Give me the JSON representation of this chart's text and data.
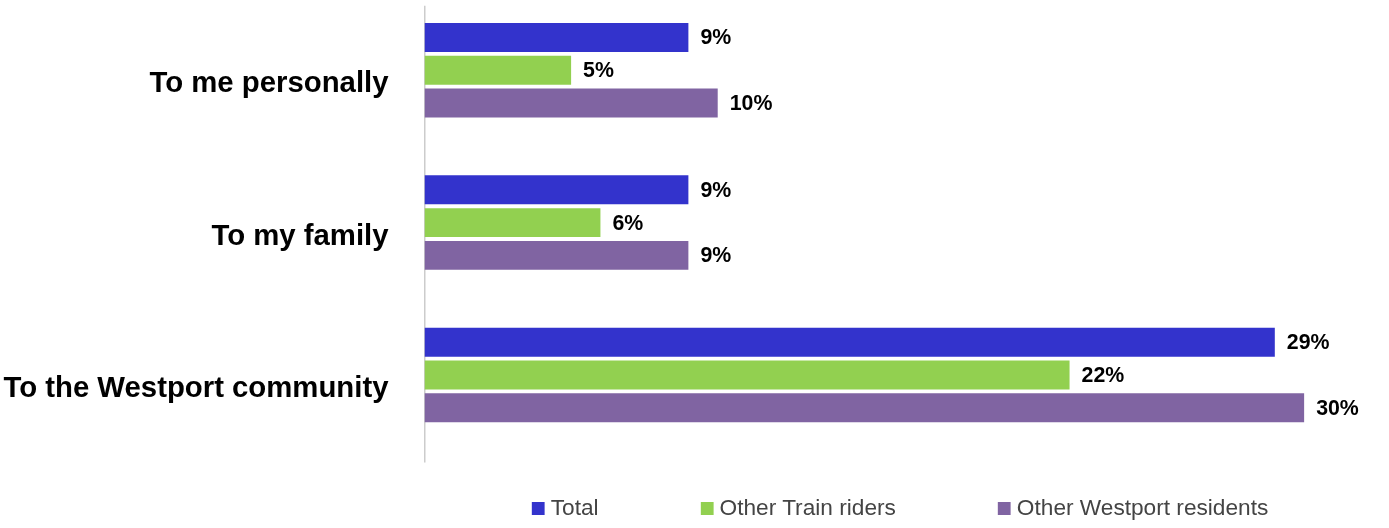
{
  "chart_data": {
    "type": "bar",
    "orientation": "horizontal",
    "categories": [
      "To me personally",
      "To my family",
      "To the Westport community"
    ],
    "series": [
      {
        "name": "Total",
        "color": "#3333cc",
        "values": [
          9,
          9,
          29
        ],
        "value_labels": [
          "9%",
          "9%",
          "29%"
        ]
      },
      {
        "name": "Other Train riders",
        "color": "#92d050",
        "values": [
          5,
          6,
          22
        ],
        "value_labels": [
          "5%",
          "6%",
          "22%"
        ]
      },
      {
        "name": "Other Westport residents",
        "color": "#8064a2",
        "values": [
          10,
          9,
          30
        ],
        "value_labels": [
          "10%",
          "9%",
          "30%"
        ]
      }
    ],
    "legend": "bottom",
    "grid": false
  }
}
